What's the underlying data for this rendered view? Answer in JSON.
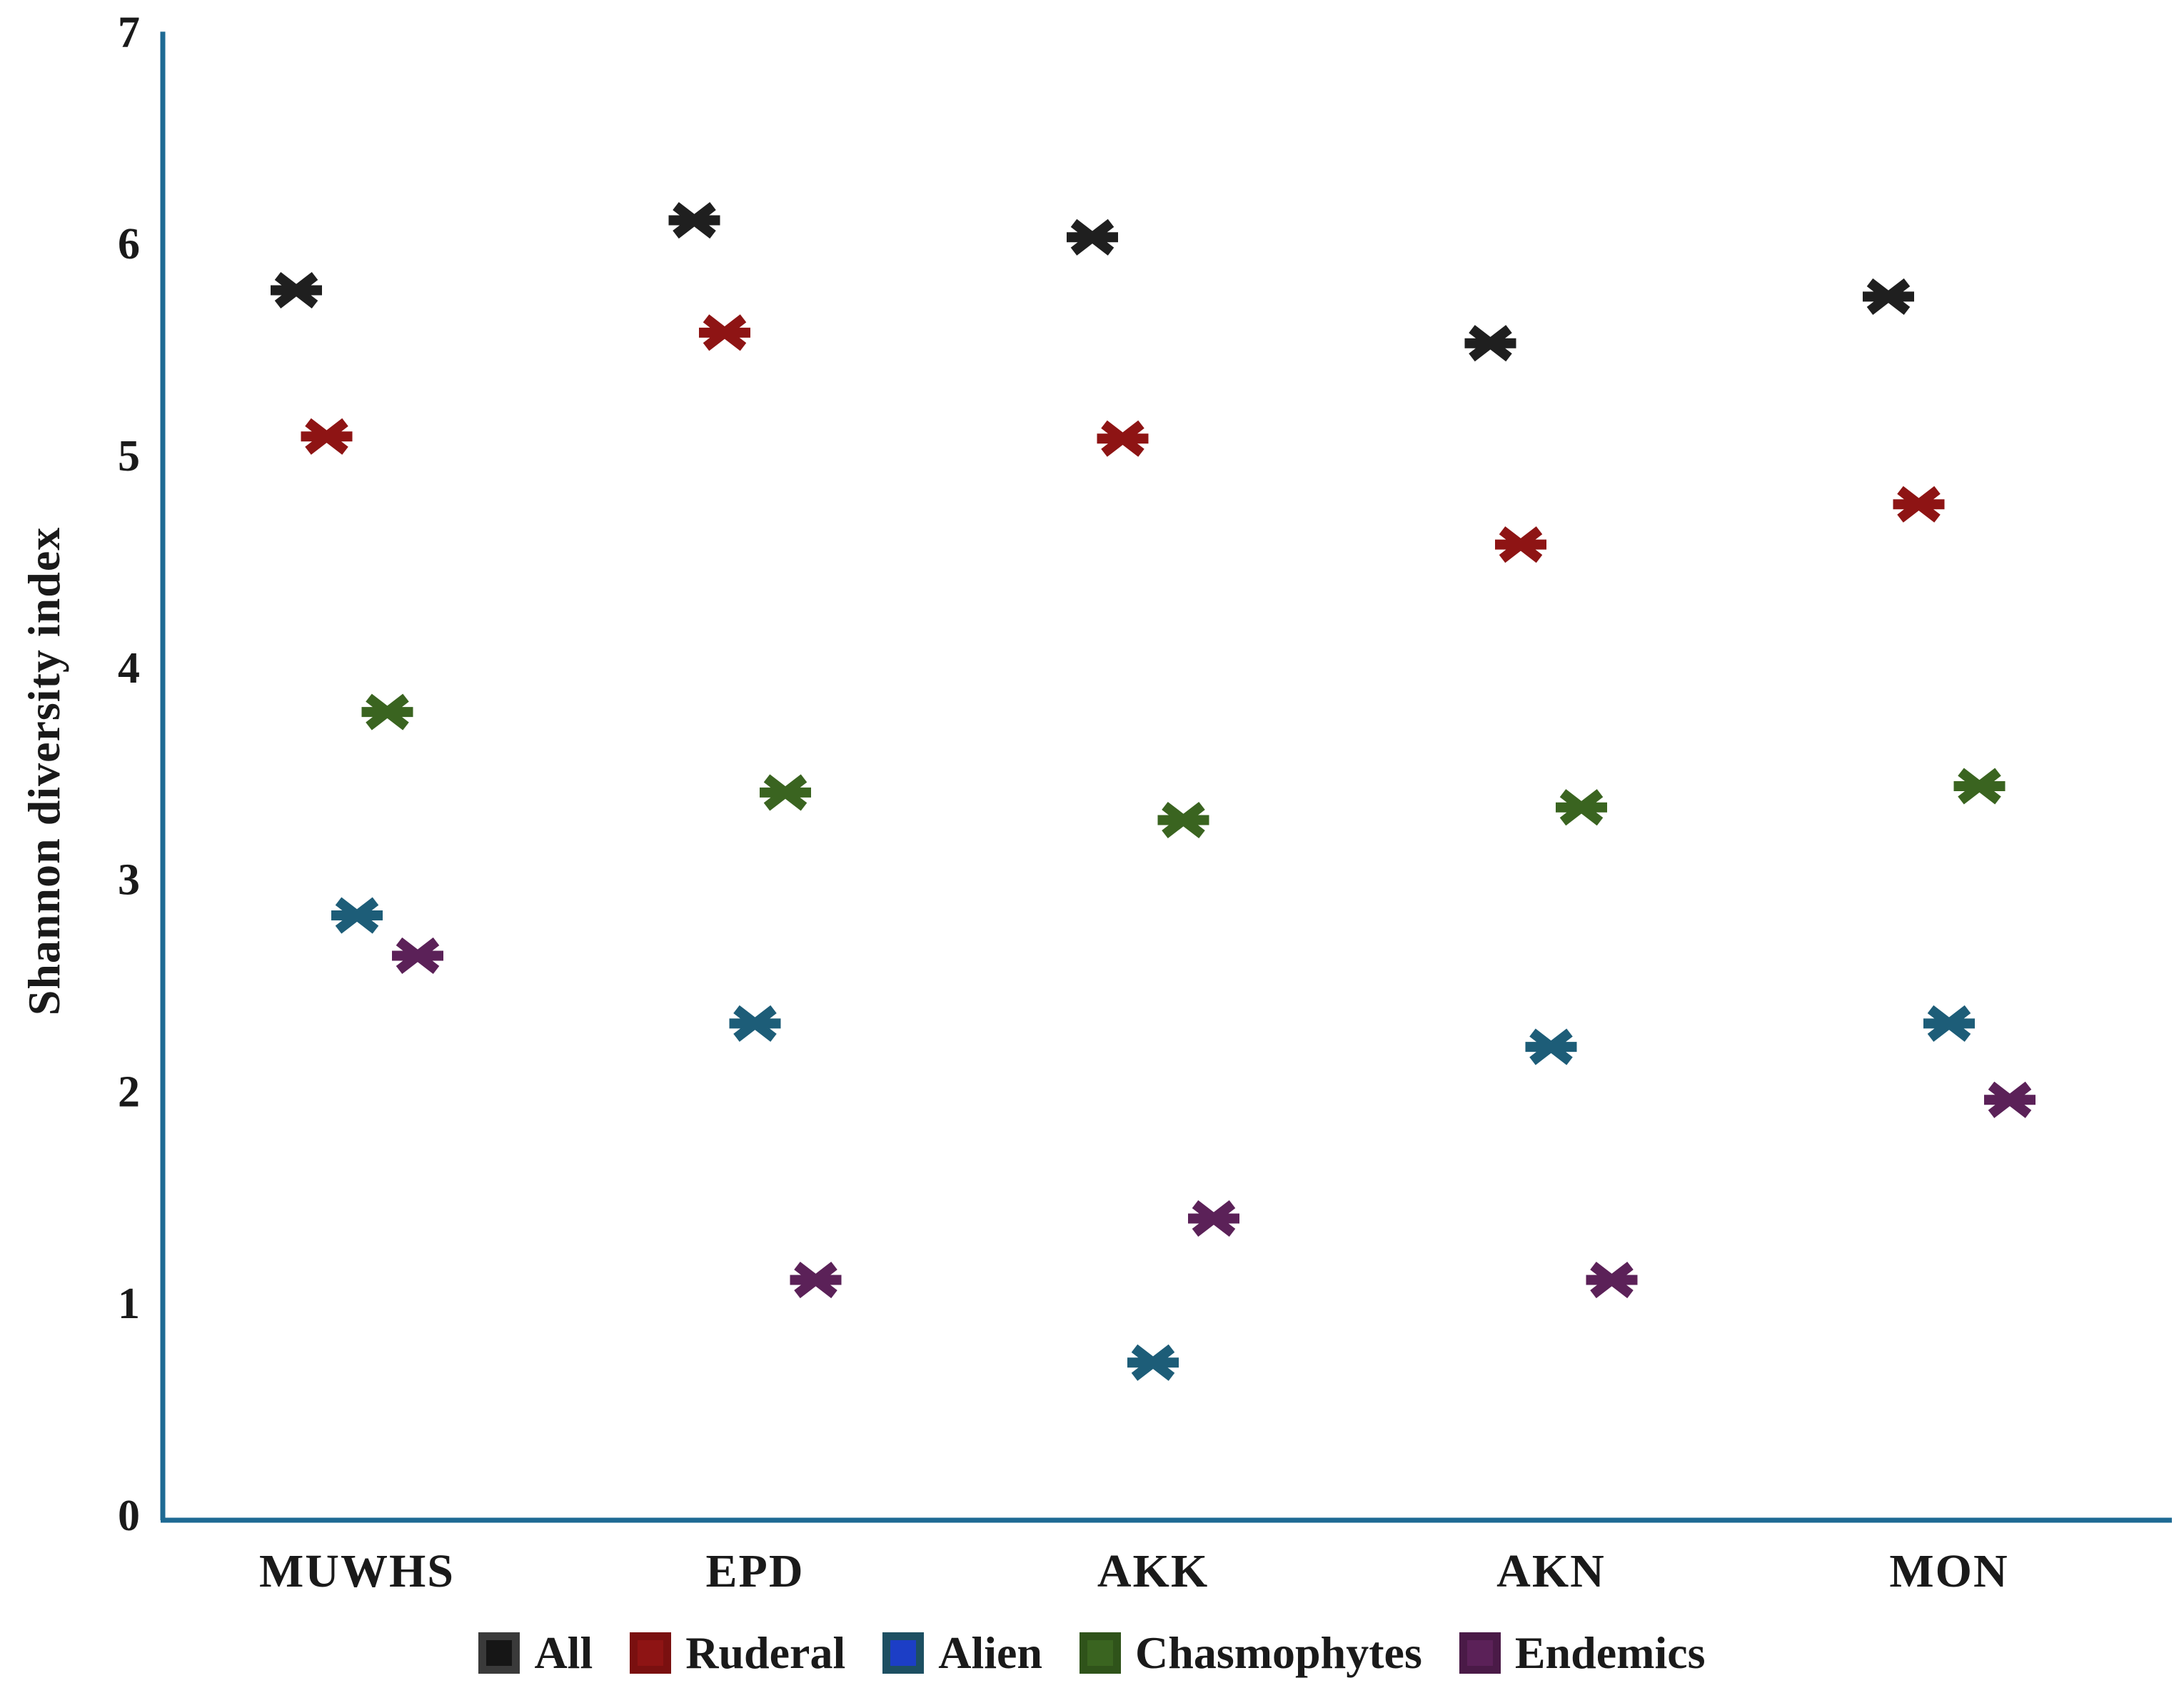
{
  "chart_data": {
    "type": "scatter",
    "title": "",
    "xlabel": "",
    "ylabel": "Shannon diversity index",
    "ylim": [
      0,
      7
    ],
    "yticks": [
      "0",
      "1",
      "2",
      "3",
      "4",
      "5",
      "6",
      "7"
    ],
    "grid": false,
    "legend_position": "bottom",
    "marker_style": "x-asterisk",
    "axis_color": "#1e6a94",
    "text_color": "#1a1a1a",
    "categories": [
      "MUWHS",
      "EPD",
      "AKK",
      "AKN",
      "MON"
    ],
    "series": [
      {
        "name": "All",
        "color": "#1f1f1f",
        "legend_fill": "#161616",
        "legend_border": "#3a3a3a",
        "values": [
          5.78,
          6.11,
          6.03,
          5.53,
          5.75
        ]
      },
      {
        "name": "Ruderal",
        "color": "#8e1414",
        "legend_fill": "#8e1414",
        "legend_border": "#7a1010",
        "values": [
          5.09,
          5.58,
          5.08,
          4.58,
          4.77
        ]
      },
      {
        "name": "Alien",
        "color": "#1d5d78",
        "legend_fill": "#1c3ec6",
        "legend_border": "#1d4f62",
        "values": [
          2.83,
          2.32,
          0.72,
          2.21,
          2.32
        ]
      },
      {
        "name": "Chasmophytes",
        "color": "#3a6420",
        "legend_fill": "#3a6420",
        "legend_border": "#2f531a",
        "values": [
          3.79,
          3.41,
          3.28,
          3.34,
          3.44
        ]
      },
      {
        "name": "Endemics",
        "color": "#5b2158",
        "legend_fill": "#5b2158",
        "legend_border": "#4a1a47",
        "values": [
          2.64,
          1.11,
          1.4,
          1.11,
          1.96
        ]
      }
    ]
  }
}
